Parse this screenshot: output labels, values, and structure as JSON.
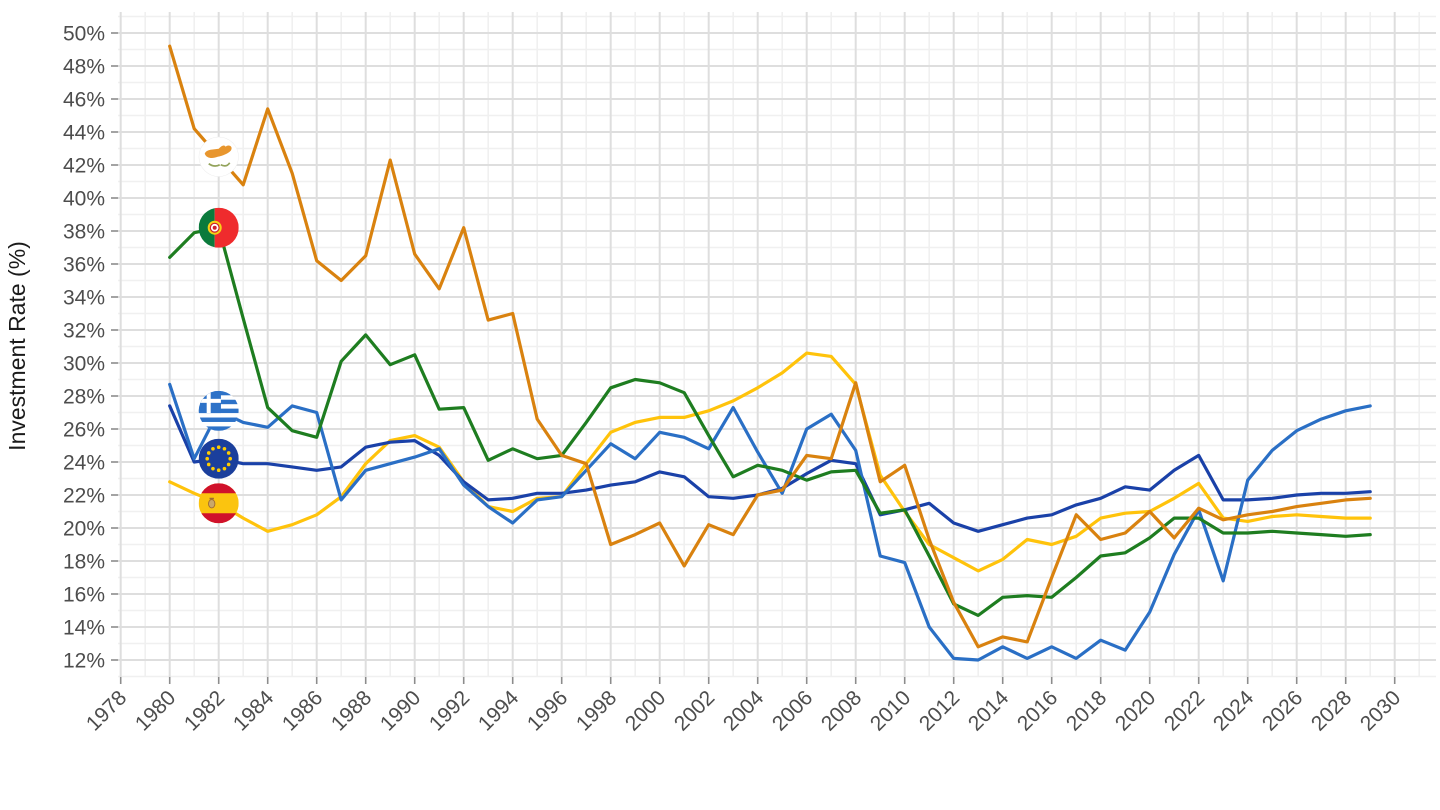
{
  "chart_data": {
    "type": "line",
    "title": "",
    "xlabel": "",
    "ylabel": "Investment Rate (%)",
    "grid": "on",
    "legend_position": "none (flag icons mark each series near its start, at year 1982)",
    "x_axis": {
      "tick_labels": [
        1978,
        1980,
        1982,
        1984,
        1986,
        1988,
        1990,
        1992,
        1994,
        1996,
        1998,
        2000,
        2002,
        2004,
        2006,
        2008,
        2010,
        2012,
        2014,
        2016,
        2018,
        2020,
        2022,
        2024,
        2026,
        2028,
        2030
      ],
      "minor_grid_step_years": 1,
      "label_rotation_deg": 45
    },
    "y_axis": {
      "tick_values": [
        12,
        14,
        16,
        18,
        20,
        22,
        24,
        26,
        28,
        30,
        32,
        34,
        36,
        38,
        40,
        42,
        44,
        46,
        48,
        50
      ],
      "tick_suffix": "%",
      "minor_grid_step": 1,
      "range_shown": [
        11,
        51
      ]
    },
    "flag_marker_year": 1982,
    "years": [
      1980,
      1981,
      1982,
      1983,
      1984,
      1985,
      1986,
      1987,
      1988,
      1989,
      1990,
      1991,
      1992,
      1993,
      1994,
      1995,
      1996,
      1997,
      1998,
      1999,
      2000,
      2001,
      2002,
      2003,
      2004,
      2005,
      2006,
      2007,
      2008,
      2009,
      2010,
      2011,
      2012,
      2013,
      2014,
      2015,
      2016,
      2017,
      2018,
      2019,
      2020,
      2021,
      2022,
      2023,
      2024,
      2025,
      2026,
      2027,
      2028,
      2029
    ],
    "series": [
      {
        "name": "Cyprus",
        "flag": "cyprus-flag-icon",
        "color": "#D9820F",
        "values": [
          49.2,
          44.2,
          42.5,
          40.8,
          45.4,
          41.5,
          36.2,
          35.0,
          36.5,
          42.3,
          36.6,
          34.5,
          38.2,
          32.6,
          33.0,
          26.6,
          24.4,
          23.9,
          19.0,
          19.6,
          20.3,
          17.7,
          20.2,
          19.6,
          22.0,
          22.3,
          24.4,
          24.2,
          28.8,
          22.8,
          23.8,
          19.3,
          15.5,
          12.8,
          13.4,
          13.1,
          17.0,
          20.8,
          19.3,
          19.7,
          21.0,
          19.4,
          21.2,
          20.5,
          20.8,
          21.0,
          21.3,
          21.5,
          21.7,
          21.8
        ]
      },
      {
        "name": "Portugal",
        "flag": "portugal-flag-icon",
        "color": "#1E7D20",
        "values": [
          36.4,
          37.9,
          38.2,
          32.7,
          27.3,
          25.9,
          25.5,
          30.1,
          31.7,
          29.9,
          30.5,
          27.2,
          27.3,
          24.1,
          24.8,
          24.2,
          24.4,
          26.4,
          28.5,
          29.0,
          28.8,
          28.2,
          25.6,
          23.1,
          23.8,
          23.5,
          22.9,
          23.4,
          23.5,
          20.9,
          21.1,
          18.3,
          15.4,
          14.7,
          15.8,
          15.9,
          15.8,
          17.0,
          18.3,
          18.5,
          19.4,
          20.6,
          20.6,
          19.7,
          19.7,
          19.8,
          19.7,
          19.6,
          19.5,
          19.6
        ]
      },
      {
        "name": "Greece",
        "flag": "greece-flag-icon",
        "color": "#2A6FC5",
        "values": [
          28.7,
          24.2,
          27.1,
          26.4,
          26.1,
          27.4,
          27.0,
          21.7,
          23.5,
          23.9,
          24.3,
          24.8,
          22.6,
          21.3,
          20.3,
          21.7,
          21.9,
          23.5,
          25.1,
          24.2,
          25.8,
          25.5,
          24.8,
          27.3,
          24.6,
          22.1,
          26.0,
          26.9,
          24.7,
          18.3,
          17.9,
          14.0,
          12.1,
          12.0,
          12.8,
          12.1,
          12.8,
          12.1,
          13.2,
          12.6,
          14.9,
          18.4,
          21.1,
          16.8,
          22.9,
          24.7,
          25.9,
          26.6,
          27.1,
          27.4
        ]
      },
      {
        "name": "European Union",
        "flag": "eu-flag-icon",
        "color": "#1A41A8",
        "values": [
          27.4,
          24.0,
          24.2,
          23.9,
          23.9,
          23.7,
          23.5,
          23.7,
          24.9,
          25.2,
          25.3,
          24.4,
          22.8,
          21.7,
          21.8,
          22.1,
          22.1,
          22.3,
          22.6,
          22.8,
          23.4,
          23.1,
          21.9,
          21.8,
          22.0,
          22.4,
          23.3,
          24.1,
          23.9,
          20.8,
          21.1,
          21.5,
          20.3,
          19.8,
          20.2,
          20.6,
          20.8,
          21.4,
          21.8,
          22.5,
          22.3,
          23.5,
          24.4,
          21.7,
          21.7,
          21.8,
          22.0,
          22.1,
          22.1,
          22.2
        ]
      },
      {
        "name": "Spain",
        "flag": "spain-flag-icon",
        "color": "#FFC30B",
        "values": [
          22.8,
          22.1,
          21.5,
          20.6,
          19.8,
          20.2,
          20.8,
          21.9,
          23.9,
          25.3,
          25.6,
          24.9,
          22.8,
          21.3,
          21.0,
          21.8,
          21.9,
          23.9,
          25.8,
          26.4,
          26.7,
          26.7,
          27.1,
          27.7,
          28.5,
          29.4,
          30.6,
          30.4,
          28.7,
          23.2,
          21.0,
          19.0,
          18.2,
          17.4,
          18.1,
          19.3,
          19.0,
          19.5,
          20.6,
          20.9,
          21.0,
          21.8,
          22.7,
          20.6,
          20.4,
          20.7,
          20.8,
          20.7,
          20.6,
          20.6
        ]
      }
    ],
    "style_colors": {
      "background": "#ffffff",
      "grid_major": "#dedede",
      "grid_minor": "#f0f0f0",
      "tick_text": "#4d4d4d",
      "axis_title_text": "#1a1a1a"
    }
  }
}
